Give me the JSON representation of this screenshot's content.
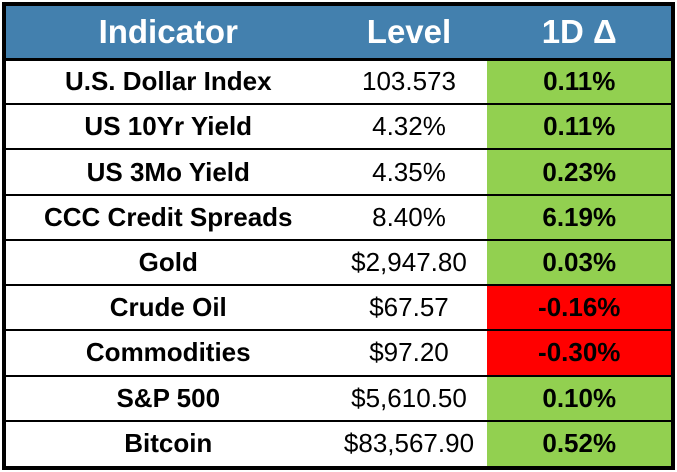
{
  "chart_data": {
    "type": "table",
    "columns": [
      "Indicator",
      "Level",
      "1D Δ"
    ],
    "rows": [
      {
        "indicator": "U.S. Dollar Index",
        "level": "103.573",
        "delta": "0.11%"
      },
      {
        "indicator": "US 10Yr Yield",
        "level": "4.32%",
        "delta": "0.11%"
      },
      {
        "indicator": "US 3Mo Yield",
        "level": "4.35%",
        "delta": "0.23%"
      },
      {
        "indicator": "CCC Credit Spreads",
        "level": "8.40%",
        "delta": "6.19%"
      },
      {
        "indicator": "Gold",
        "level": "$2,947.80",
        "delta": "0.03%"
      },
      {
        "indicator": "Crude Oil",
        "level": "$67.57",
        "delta": "-0.16%"
      },
      {
        "indicator": "Commodities",
        "level": "$97.20",
        "delta": "-0.30%"
      },
      {
        "indicator": "S&P 500",
        "level": "$5,610.50",
        "delta": "0.10%"
      },
      {
        "indicator": "Bitcoin",
        "level": "$83,567.90",
        "delta": "0.52%"
      }
    ],
    "colors": {
      "header_bg": "#4380AE",
      "header_text": "#FFFFFF",
      "positive_bg": "#92D050",
      "negative_bg": "#FF0000",
      "border": "#000000",
      "body_text": "#000000"
    },
    "layout": {
      "grid": "horizontal-rules-only",
      "conditional_format_column": "1D Δ",
      "positive_rule": "delta >= 0 -> green fill",
      "negative_rule": "delta < 0 -> red fill"
    }
  }
}
